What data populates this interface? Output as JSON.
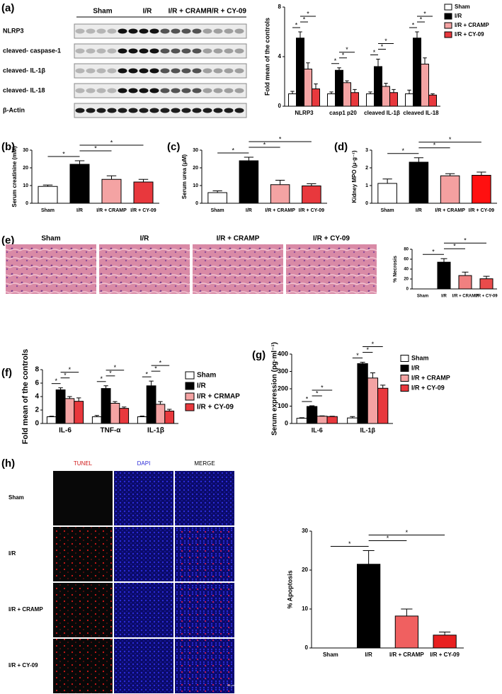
{
  "blot": {
    "panel": "(a)",
    "groups": [
      "Sham",
      "I/R",
      "I/R + CRAMP",
      "I/R + CY-09"
    ],
    "rows": [
      "NLRP3",
      "cleaved- caspase-1",
      "cleaved- IL-1β",
      "cleaved- IL-18",
      "β-Actin"
    ]
  },
  "histology": {
    "panel": "(e)",
    "groups": [
      "Sham",
      "I/R",
      "I/R + CRAMP",
      "I/R + CY-09"
    ]
  },
  "tunel": {
    "panel": "(h)",
    "columns": [
      "TUNEL",
      "DAPI",
      "MERGE"
    ],
    "rows": [
      "Sham",
      "I/R",
      "I/R + CRAMP",
      "I/R + CY-09"
    ],
    "scale": "50 μm"
  },
  "chart_data": [
    {
      "type": "bar",
      "ylabel": "Fold mean of the controls",
      "categories": [
        "NLRP3",
        "casp1 p20",
        "cleaved IL-1β",
        "cleaved IL-18"
      ],
      "series": [
        {
          "name": "Sham",
          "color": "#ffffff",
          "values": [
            1,
            1,
            1,
            1
          ],
          "errors": [
            0.2,
            0.15,
            0.15,
            0.3
          ]
        },
        {
          "name": "I/R",
          "color": "#000000",
          "values": [
            5.5,
            2.9,
            3.2,
            5.5
          ],
          "errors": [
            0.5,
            0.2,
            0.6,
            0.5
          ]
        },
        {
          "name": "I/R + CRAMP",
          "color": "#f4a3a3",
          "values": [
            3.0,
            1.9,
            1.6,
            3.4
          ],
          "errors": [
            0.5,
            0.15,
            0.25,
            0.5
          ]
        },
        {
          "name": "I/R + CY-09",
          "color": "#e8383d",
          "values": [
            1.4,
            1.1,
            1.1,
            0.9
          ],
          "errors": [
            0.4,
            0.25,
            0.25,
            0.1
          ]
        }
      ],
      "ylim": [
        0,
        8
      ],
      "yticks": [
        0,
        4,
        8
      ],
      "legend": "right",
      "significance": {
        "label": "*",
        "pairs": [
          [
            0,
            1
          ],
          [
            1,
            2
          ],
          [
            1,
            3
          ]
        ]
      }
    },
    {
      "type": "bar",
      "panel": "(b)",
      "ylabel": "Serum creatinine (mM)",
      "categories": [
        "Sham",
        "I/R",
        "I/R + CRAMP",
        "I/R + CY-09"
      ],
      "values": [
        9.5,
        22,
        13.5,
        12
      ],
      "errors": [
        0.8,
        2,
        2,
        1.5
      ],
      "colors": [
        "#ffffff",
        "#000000",
        "#f4a3a3",
        "#e8383d"
      ],
      "ylim": [
        0,
        30
      ],
      "yticks": [
        0,
        10,
        20,
        30
      ],
      "significance": {
        "label": "*",
        "pairs": [
          [
            0,
            1
          ],
          [
            1,
            2
          ],
          [
            1,
            3
          ]
        ]
      }
    },
    {
      "type": "bar",
      "panel": "(c)",
      "ylabel": "Serum urea (μM)",
      "categories": [
        "Sham",
        "I/R",
        "I/R + CRAMP",
        "I/R + CY-09"
      ],
      "values": [
        6,
        24,
        10.5,
        9.8
      ],
      "errors": [
        1,
        2,
        2.5,
        1.2
      ],
      "colors": [
        "#ffffff",
        "#000000",
        "#f4a3a3",
        "#e8383d"
      ],
      "ylim": [
        0,
        30
      ],
      "yticks": [
        0,
        10,
        20,
        30
      ],
      "significance": {
        "label": "*",
        "pairs": [
          [
            0,
            1
          ],
          [
            1,
            2
          ],
          [
            1,
            3
          ]
        ]
      }
    },
    {
      "type": "bar",
      "panel": "(d)",
      "ylabel": "Kidney MPO (μ·g⁻¹)",
      "categories": [
        "Sham",
        "I/R",
        "I/R + CRAMP",
        "I/R + CY-09"
      ],
      "values": [
        1.12,
        2.32,
        1.55,
        1.58
      ],
      "errors": [
        0.25,
        0.25,
        0.12,
        0.18
      ],
      "colors": [
        "#ffffff",
        "#000000",
        "#f4a0a0",
        "#ff1010"
      ],
      "ylim": [
        0,
        3
      ],
      "yticks": [
        0,
        1,
        2,
        3
      ],
      "significance": {
        "label": "*",
        "pairs": [
          [
            0,
            1
          ],
          [
            1,
            2
          ],
          [
            1,
            3
          ]
        ]
      }
    },
    {
      "type": "bar",
      "ylabel": "% Necrosis",
      "categories": [
        "Sham",
        "I/R",
        "I/R + CRAMP",
        "I/R + CY-09"
      ],
      "values": [
        0,
        54,
        27,
        20.5
      ],
      "errors": [
        0,
        7,
        7,
        5
      ],
      "colors": [
        "#ffffff",
        "#000000",
        "#f08080",
        "#e94b4b"
      ],
      "ylim": [
        0,
        80
      ],
      "yticks": [
        0,
        20,
        40,
        60,
        80
      ],
      "significance": {
        "label": "*",
        "pairs": [
          [
            0,
            1
          ],
          [
            1,
            2
          ],
          [
            1,
            3
          ]
        ]
      }
    },
    {
      "type": "bar",
      "panel": "(f)",
      "ylabel": "Fold mean of the controls",
      "categories": [
        "IL-6",
        "TNF-α",
        "IL-1β"
      ],
      "series": [
        {
          "name": "Sham",
          "color": "#ffffff",
          "values": [
            1,
            1,
            1
          ],
          "errors": [
            0.08,
            0.2,
            0.1
          ]
        },
        {
          "name": "I/R",
          "color": "#000000",
          "values": [
            5,
            5.2,
            5.6
          ],
          "errors": [
            0.3,
            0.4,
            0.7
          ]
        },
        {
          "name": "I/R + CRMAP",
          "color": "#f4a3a3",
          "values": [
            3.7,
            3.0,
            2.85
          ],
          "errors": [
            0.3,
            0.25,
            0.4
          ]
        },
        {
          "name": "I/R + CY-09",
          "color": "#e8383d",
          "values": [
            3.3,
            2.25,
            1.85
          ],
          "errors": [
            0.5,
            0.2,
            0.25
          ]
        }
      ],
      "ylim": [
        0,
        8
      ],
      "yticks": [
        0,
        2,
        4,
        6,
        8
      ],
      "legend": "right",
      "significance": {
        "label": "*",
        "pairs": [
          [
            0,
            1
          ],
          [
            1,
            2
          ],
          [
            1,
            3
          ]
        ]
      }
    },
    {
      "type": "bar",
      "panel": "(g)",
      "ylabel": "Serum expression (pg·ml⁻¹)",
      "categories": [
        "IL-6",
        "IL-1β"
      ],
      "series": [
        {
          "name": "Sham",
          "color": "#ffffff",
          "values": [
            30,
            32
          ],
          "errors": [
            3,
            8
          ]
        },
        {
          "name": "I/R",
          "color": "#000000",
          "values": [
            98,
            345
          ],
          "errors": [
            4,
            8
          ]
        },
        {
          "name": "I/R + CRAMP",
          "color": "#f4a3a3",
          "values": [
            42,
            262
          ],
          "errors": [
            2,
            30
          ]
        },
        {
          "name": "I/R + CY-09",
          "color": "#e8383d",
          "values": [
            40,
            203
          ],
          "errors": [
            2,
            18
          ]
        }
      ],
      "ylim": [
        0,
        400
      ],
      "yticks": [
        0,
        100,
        200,
        300,
        400
      ],
      "legend": "right",
      "significance": {
        "label": "*",
        "pairs": [
          [
            0,
            1
          ],
          [
            1,
            2
          ],
          [
            1,
            3
          ]
        ]
      }
    },
    {
      "type": "bar",
      "ylabel": "% Apoptosis",
      "categories": [
        "Sham",
        "I/R",
        "I/R + CRAMP",
        "I/R + CY-09"
      ],
      "values": [
        0,
        21.5,
        8.2,
        3.3
      ],
      "errors": [
        0,
        3.5,
        1.8,
        0.8
      ],
      "colors": [
        "#ffffff",
        "#000000",
        "#f06060",
        "#e82020"
      ],
      "ylim": [
        0,
        30
      ],
      "yticks": [
        0,
        10,
        20,
        30
      ],
      "significance": {
        "label": "*",
        "pairs": [
          [
            0,
            1
          ],
          [
            1,
            2
          ],
          [
            1,
            3
          ]
        ]
      }
    }
  ]
}
